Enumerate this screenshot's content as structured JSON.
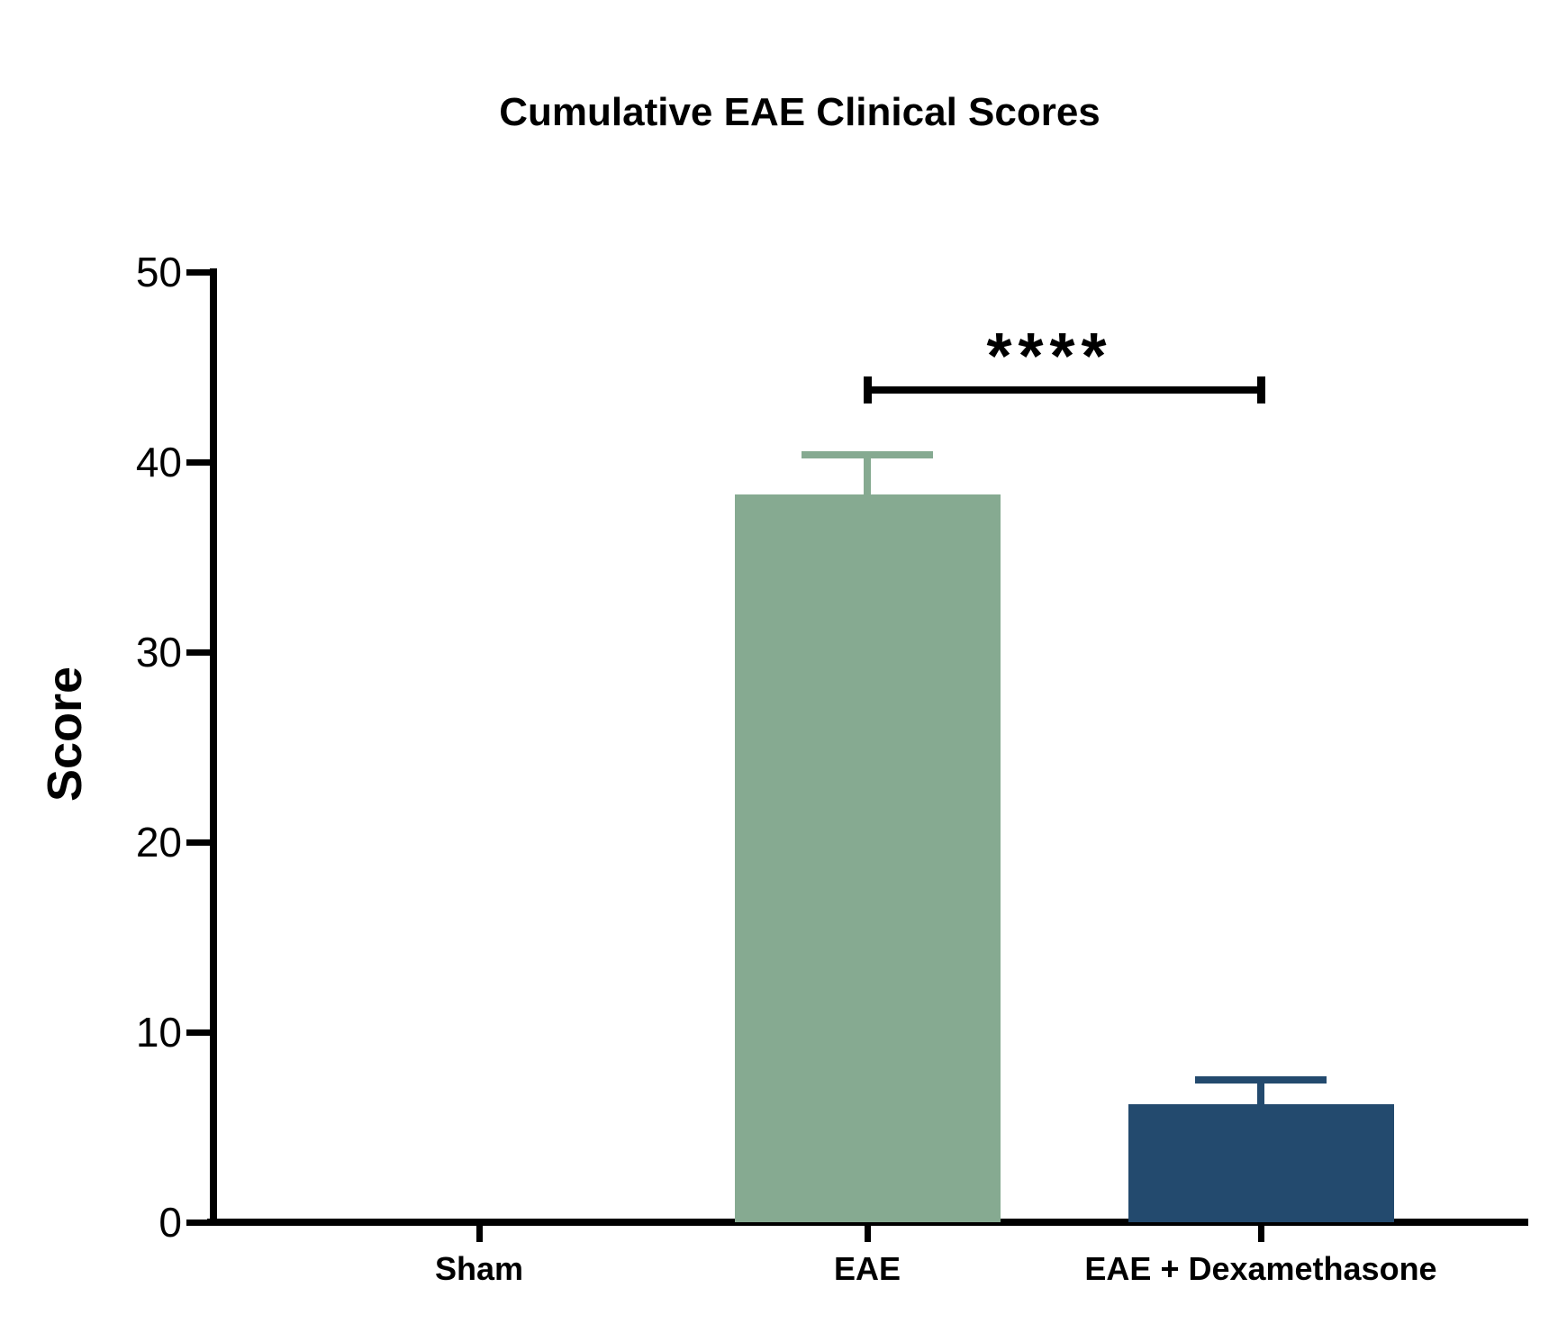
{
  "page": {
    "background_color": "#ffffff",
    "text_color": "#000000"
  },
  "chart_data": {
    "type": "bar",
    "title": "Cumulative EAE Clinical Scores",
    "ylabel": "Score",
    "xlabel": "",
    "categories": [
      "Sham",
      "EAE",
      "EAE + Dexamethasone"
    ],
    "values": [
      0,
      38.3,
      6.2
    ],
    "errors_sem_upper": [
      0,
      2.1,
      1.3
    ],
    "error_bar_tops": [
      0,
      40.4,
      7.5
    ],
    "bar_colors": [
      "none",
      "#86aa91",
      "#234a6e"
    ],
    "ylim": [
      0,
      50
    ],
    "yticks": [
      0,
      10,
      20,
      30,
      40,
      50
    ],
    "grid": false,
    "legend": "none",
    "significance": {
      "label": "****",
      "from": "EAE",
      "to": "EAE + Dexamethasone",
      "y_value": 43.8
    }
  }
}
